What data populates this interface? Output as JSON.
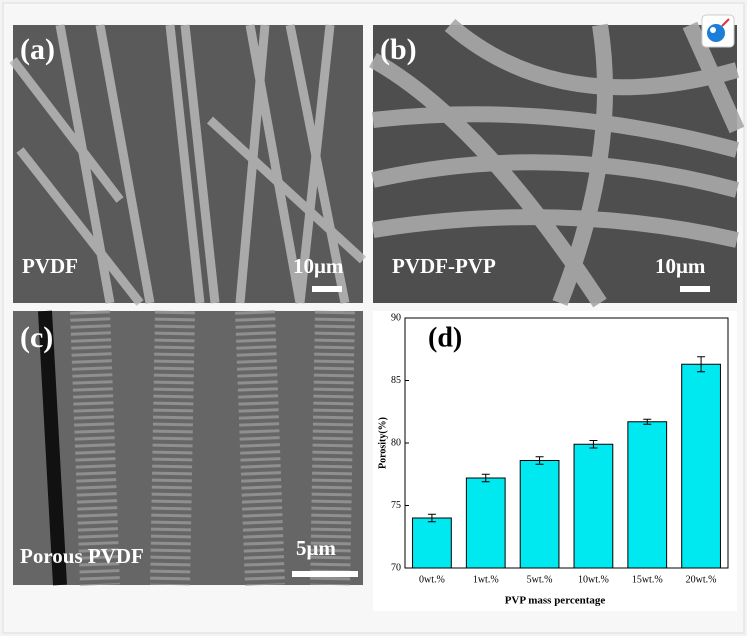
{
  "panels": [
    {
      "label": "(a)",
      "caption": "PVDF",
      "scale": "10μm"
    },
    {
      "label": "(b)",
      "caption": "PVDF-PVP",
      "scale": "10μm"
    },
    {
      "label": "(c)",
      "caption": "Porous PVDF",
      "scale": "5μm"
    }
  ],
  "chart_data": {
    "type": "bar",
    "label": "(d)",
    "x_label": "PVP mass percentage",
    "y_label": "Porosity(%)",
    "categories": [
      "0wt.%",
      "1wt.%",
      "5wt.%",
      "10wt.%",
      "15wt.%",
      "20wt.%"
    ],
    "values": [
      74.0,
      77.2,
      78.6,
      79.9,
      81.7,
      86.3
    ],
    "errors": [
      0.3,
      0.3,
      0.3,
      0.3,
      0.2,
      0.6
    ],
    "color": "#00e8f0",
    "ylim": [
      70,
      90
    ],
    "yticks": [
      70,
      75,
      80,
      85,
      90
    ]
  }
}
